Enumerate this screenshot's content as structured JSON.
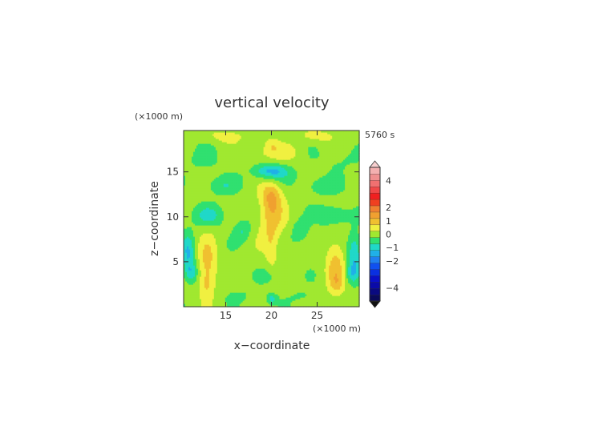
{
  "chart_data": {
    "type": "heatmap",
    "title": "vertical velocity",
    "time_label": "5760 s",
    "xlabel": "x−coordinate",
    "ylabel": "z−coordinate",
    "x_unit": "(×1000 m)",
    "y_unit": "(×1000 m)",
    "xlim": [
      10.4,
      29.6
    ],
    "ylim": [
      0,
      19.6
    ],
    "x_ticks": [
      15,
      20,
      25
    ],
    "x_tick_labels": [
      "15",
      "20",
      "25"
    ],
    "y_ticks": [
      5,
      10,
      15
    ],
    "y_tick_labels": [
      "5",
      "10",
      "15"
    ],
    "colorbar": {
      "levels": [
        -5,
        -4.5,
        -4,
        -3.5,
        -3,
        -2.5,
        -2,
        -1.5,
        -1,
        -0.5,
        0,
        0.5,
        1,
        1.5,
        2,
        2.5,
        3,
        3.5,
        4,
        4.5,
        5
      ],
      "colors": [
        "#0a0a5a",
        "#0a0a80",
        "#0a0aa8",
        "#0a10c8",
        "#0a30e0",
        "#1050f0",
        "#2080f0",
        "#20b0e8",
        "#20d8c8",
        "#30e070",
        "#a0e830",
        "#f0f040",
        "#f0c030",
        "#f0a030",
        "#f08030",
        "#f04020",
        "#f02020",
        "#f04848",
        "#f07070",
        "#f09090",
        "#f4b0b0"
      ],
      "tick_values": [
        4,
        2,
        1,
        0,
        -1,
        -2,
        -4
      ],
      "tick_labels": [
        "4",
        "2",
        "1",
        "0",
        "−1",
        "−2",
        "−4"
      ]
    },
    "features": [
      {
        "x": 20,
        "z": 10.5,
        "sx": 0.9,
        "sz": 2.5,
        "a": 1.2
      },
      {
        "x": 20,
        "z": 12.3,
        "sx": 0.7,
        "sz": 0.9,
        "a": 0.6
      },
      {
        "x": 13,
        "z": 4.5,
        "sx": 0.7,
        "sz": 2.2,
        "a": 1.05
      },
      {
        "x": 27,
        "z": 4.5,
        "sx": 0.7,
        "sz": 2.2,
        "a": 1.05
      },
      {
        "x": 12.8,
        "z": 2.5,
        "sx": 0.5,
        "sz": 0.7,
        "a": 0.4
      },
      {
        "x": 27.2,
        "z": 2.5,
        "sx": 0.5,
        "sz": 0.7,
        "a": 0.4
      },
      {
        "x": 20,
        "z": 6,
        "sx": 0.4,
        "sz": 1.5,
        "a": 0.4
      },
      {
        "x": 20,
        "z": 15.2,
        "sx": 1.2,
        "sz": 0.5,
        "a": -1.3
      },
      {
        "x": 20,
        "z": 14.5,
        "sx": 1.6,
        "sz": 0.6,
        "a": -0.5
      },
      {
        "x": 10.9,
        "z": 6,
        "sx": 0.5,
        "sz": 1.5,
        "a": -1.2
      },
      {
        "x": 29.1,
        "z": 6,
        "sx": 0.5,
        "sz": 1.5,
        "a": -1.2
      },
      {
        "x": 11.2,
        "z": 3.8,
        "sx": 0.5,
        "sz": 0.8,
        "a": -0.9
      },
      {
        "x": 28.8,
        "z": 3.8,
        "sx": 0.5,
        "sz": 0.8,
        "a": -0.9
      },
      {
        "x": 20,
        "z": 0.9,
        "sx": 0.4,
        "sz": 0.4,
        "a": -0.9
      },
      {
        "x": 20,
        "z": 3.5,
        "sx": 0.8,
        "sz": 0.7,
        "a": -0.3
      },
      {
        "x": 20,
        "z": 18,
        "sx": 0.6,
        "sz": 0.6,
        "a": 0.6
      },
      {
        "x": 21.5,
        "z": 17.2,
        "sx": 1.2,
        "sz": 0.6,
        "a": 0.4
      },
      {
        "x": 18.5,
        "z": 17.2,
        "sx": 1.2,
        "sz": 0.6,
        "a": 0.4
      },
      {
        "x": 15,
        "z": 19,
        "sx": 1.5,
        "sz": 0.5,
        "a": 0.5
      },
      {
        "x": 25,
        "z": 19,
        "sx": 1.5,
        "sz": 0.5,
        "a": 0.5
      },
      {
        "x": 13.2,
        "z": 10.2,
        "sx": 1.2,
        "sz": 0.8,
        "a": -0.8
      },
      {
        "x": 26.8,
        "z": 10.2,
        "sx": 1.2,
        "sz": 0.8,
        "a": -0.8
      },
      {
        "x": 14.5,
        "z": 13.5,
        "sx": 1.3,
        "sz": 0.7,
        "a": -0.6
      },
      {
        "x": 25.5,
        "z": 13.5,
        "sx": 1.3,
        "sz": 0.7,
        "a": -0.6
      },
      {
        "x": 16.8,
        "z": 8.5,
        "sx": 0.6,
        "sz": 0.8,
        "a": -0.7
      },
      {
        "x": 23.2,
        "z": 8.5,
        "sx": 0.6,
        "sz": 0.8,
        "a": -0.7
      },
      {
        "x": 12.5,
        "z": 16.5,
        "sx": 1.5,
        "sz": 1.0,
        "a": -0.3
      },
      {
        "x": 27.5,
        "z": 16.5,
        "sx": 1.5,
        "sz": 1.0,
        "a": -0.3
      },
      {
        "x": 16.5,
        "z": 1.2,
        "sx": 1.0,
        "sz": 0.5,
        "a": -0.3
      },
      {
        "x": 23.5,
        "z": 1.2,
        "sx": 1.0,
        "sz": 0.5,
        "a": -0.3
      }
    ]
  }
}
